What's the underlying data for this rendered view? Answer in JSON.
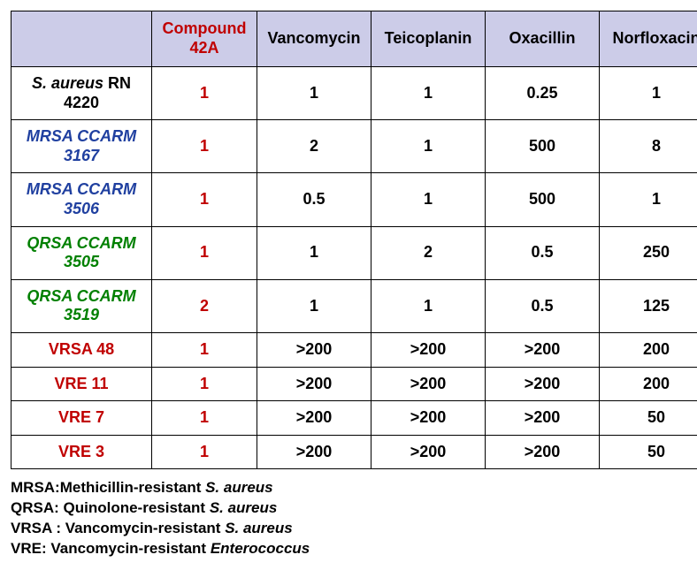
{
  "table": {
    "type": "table",
    "header_bg": "#cccce8",
    "border_color": "#000000",
    "text_color": "#000000",
    "compound_color": "#c00000",
    "strain_colors": {
      "black": "#000000",
      "blue": "#2040a0",
      "green": "#008000",
      "red": "#c00000"
    },
    "font_family": "Arial",
    "header_fontsize": 18,
    "body_fontsize": 18,
    "columns": [
      {
        "key": "strain",
        "label": "",
        "width": 150
      },
      {
        "key": "compound42a",
        "label": "Compound 42A",
        "width": 110,
        "is_compound": true
      },
      {
        "key": "vancomycin",
        "label": "Vancomycin",
        "width": 120
      },
      {
        "key": "teicoplanin",
        "label": "Teicoplanin",
        "width": 120
      },
      {
        "key": "oxacillin",
        "label": "Oxacillin",
        "width": 120
      },
      {
        "key": "norfloxacin",
        "label": "Norfloxacin",
        "width": 120
      }
    ],
    "rows": [
      {
        "strain_prefix": "S. aureus",
        "strain_suffix": " RN 4220",
        "strain_style": "black-italic-prefix",
        "compound42a": "1",
        "vancomycin": "1",
        "teicoplanin": "1",
        "oxacillin": "0.25",
        "norfloxacin": "1"
      },
      {
        "strain": "MRSA CCARM 3167",
        "strain_style": "blue",
        "compound42a": "1",
        "vancomycin": "2",
        "teicoplanin": "1",
        "oxacillin": "500",
        "norfloxacin": "8"
      },
      {
        "strain": "MRSA CCARM 3506",
        "strain_style": "blue",
        "compound42a": "1",
        "vancomycin": "0.5",
        "teicoplanin": "1",
        "oxacillin": "500",
        "norfloxacin": "1"
      },
      {
        "strain": "QRSA CCARM 3505",
        "strain_style": "green",
        "compound42a": "1",
        "vancomycin": "1",
        "teicoplanin": "2",
        "oxacillin": "0.5",
        "norfloxacin": "250"
      },
      {
        "strain": "QRSA CCARM 3519",
        "strain_style": "green",
        "compound42a": "2",
        "vancomycin": "1",
        "teicoplanin": "1",
        "oxacillin": "0.5",
        "norfloxacin": "125"
      },
      {
        "strain": "VRSA 48",
        "strain_style": "red",
        "compound42a": "1",
        "vancomycin": ">200",
        "teicoplanin": ">200",
        "oxacillin": ">200",
        "norfloxacin": "200"
      },
      {
        "strain": "VRE 11",
        "strain_style": "red",
        "compound42a": "1",
        "vancomycin": ">200",
        "teicoplanin": ">200",
        "oxacillin": ">200",
        "norfloxacin": "200"
      },
      {
        "strain": "VRE 7",
        "strain_style": "red",
        "compound42a": "1",
        "vancomycin": ">200",
        "teicoplanin": ">200",
        "oxacillin": ">200",
        "norfloxacin": "50"
      },
      {
        "strain": "VRE 3",
        "strain_style": "red",
        "compound42a": "1",
        "vancomycin": ">200",
        "teicoplanin": ">200",
        "oxacillin": ">200",
        "norfloxacin": "50"
      }
    ]
  },
  "legend": {
    "fontsize": 17,
    "items": [
      {
        "abbr": "MRSA:",
        "text_before": "Methicillin-resistant ",
        "species": "S. aureus",
        "text_after": ""
      },
      {
        "abbr": "QRSA:",
        "text_before": " Quinolone-resistant ",
        "species": "S. aureus",
        "text_after": ""
      },
      {
        "abbr": "VRSA :",
        "text_before": " Vancomycin-resistant ",
        "species": "S. aureus",
        "text_after": ""
      },
      {
        "abbr": "VRE:",
        "text_before": " Vancomycin-resistant ",
        "species": "Enterococcus",
        "text_after": ""
      }
    ]
  }
}
